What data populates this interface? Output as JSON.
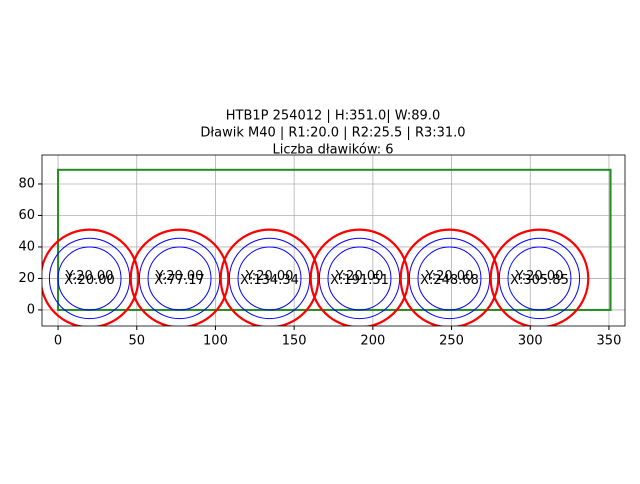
{
  "chart_data": {
    "type": "circles",
    "title": [
      "HTB1P 254012 | H:351.0| W:89.0",
      "Dławik M40 | R1:20.0 | R2:25.5 | R3:31.0",
      "Liczba dławików: 6"
    ],
    "rect": {
      "x": 0,
      "y": 0,
      "width": 351,
      "height": 89,
      "color": "#228b22"
    },
    "centers": {
      "x": [
        20,
        77.17,
        134.34,
        191.51,
        248.68,
        305.85
      ],
      "y": [
        20,
        20,
        20,
        20,
        20,
        20
      ]
    },
    "x_labels": [
      "X:20.00",
      "X:77.17",
      "X:134.34",
      "X:191.51",
      "X:248.68",
      "X:305.85"
    ],
    "y_labels": [
      "Y:20.00",
      "Y:20.00",
      "Y:20.00",
      "Y:20.00",
      "Y:20.00",
      "Y:20.00"
    ],
    "radii": [
      20,
      25.5,
      31
    ],
    "radius_colors": [
      "#0000ff",
      "#0000ff",
      "#ff0000"
    ],
    "xlim": [
      -10.2,
      360.2
    ],
    "ylim": [
      -10.2,
      98.4
    ],
    "xticks": [
      0,
      50,
      100,
      150,
      200,
      250,
      300,
      350
    ],
    "yticks": [
      0,
      20,
      40,
      60,
      80
    ],
    "grid": true
  }
}
